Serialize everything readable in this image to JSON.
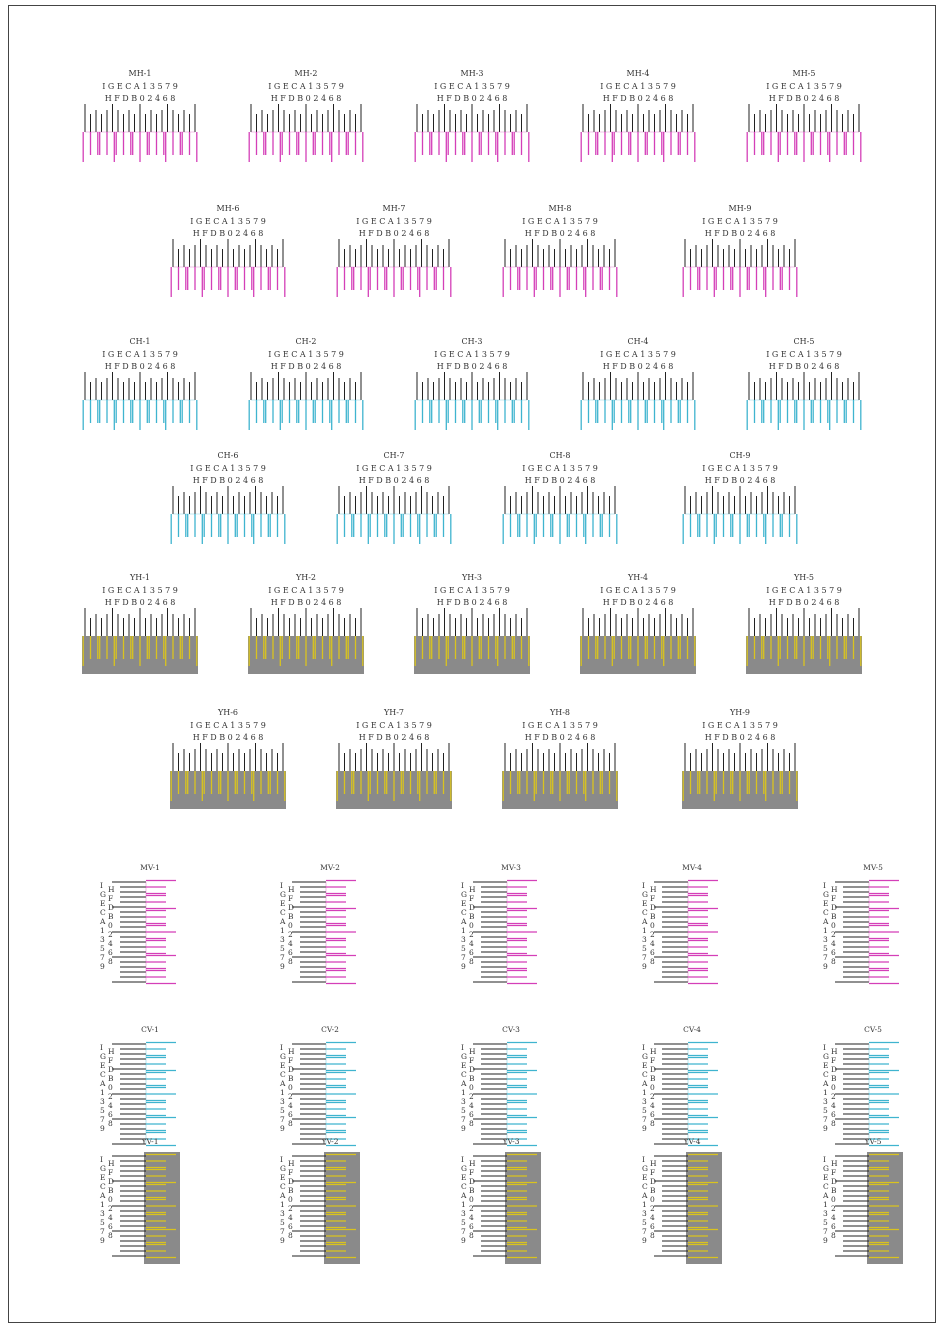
{
  "sheet": {
    "colors": {
      "magenta": "#d43fb8",
      "cyan": "#3fb4cf",
      "yellow": "#d9c31f",
      "gray": "#8a8a8a",
      "black": "#222222"
    },
    "top_scale_labels": "I G E C A 1 3 5 7 9",
    "bottom_scale_labels": "H F D B 0 2 4 6 8",
    "horizontal_sections": [
      {
        "name": "magenta",
        "color_key": "magenta",
        "background": false,
        "rows": [
          [
            "MH-1",
            "MH-2",
            "MH-3",
            "MH-4",
            "MH-5"
          ],
          [
            "MH-6",
            "MH-7",
            "MH-8",
            "MH-9"
          ]
        ]
      },
      {
        "name": "cyan",
        "color_key": "cyan",
        "background": false,
        "rows": [
          [
            "CH-1",
            "CH-2",
            "CH-3",
            "CH-4",
            "CH-5"
          ],
          [
            "CH-6",
            "CH-7",
            "CH-8",
            "CH-9"
          ]
        ]
      },
      {
        "name": "yellow",
        "color_key": "yellow",
        "background": true,
        "rows": [
          [
            "YH-1",
            "YH-2",
            "YH-3",
            "YH-4",
            "YH-5"
          ],
          [
            "YH-6",
            "YH-7",
            "YH-8",
            "YH-9"
          ]
        ]
      }
    ],
    "vertical_left_labels": [
      "I",
      "G",
      "E",
      "C",
      "A",
      "1",
      "3",
      "5",
      "7",
      "9"
    ],
    "vertical_right_labels": [
      "H",
      "F",
      "D",
      "B",
      "0",
      "2",
      "4",
      "6",
      "8"
    ],
    "vertical_sections": [
      {
        "name": "magenta",
        "color_key": "magenta",
        "background": false,
        "labels": [
          "MV-1",
          "MV-2",
          "MV-3",
          "MV-4",
          "MV-5"
        ]
      },
      {
        "name": "cyan",
        "color_key": "cyan",
        "background": false,
        "labels": [
          "CV-1",
          "CV-2",
          "CV-3",
          "CV-4",
          "CV-5"
        ]
      },
      {
        "name": "yellow",
        "color_key": "yellow",
        "background": true,
        "labels": [
          "YV-1",
          "YV-2",
          "YV-3",
          "YV-4",
          "YV-5"
        ]
      }
    ]
  }
}
